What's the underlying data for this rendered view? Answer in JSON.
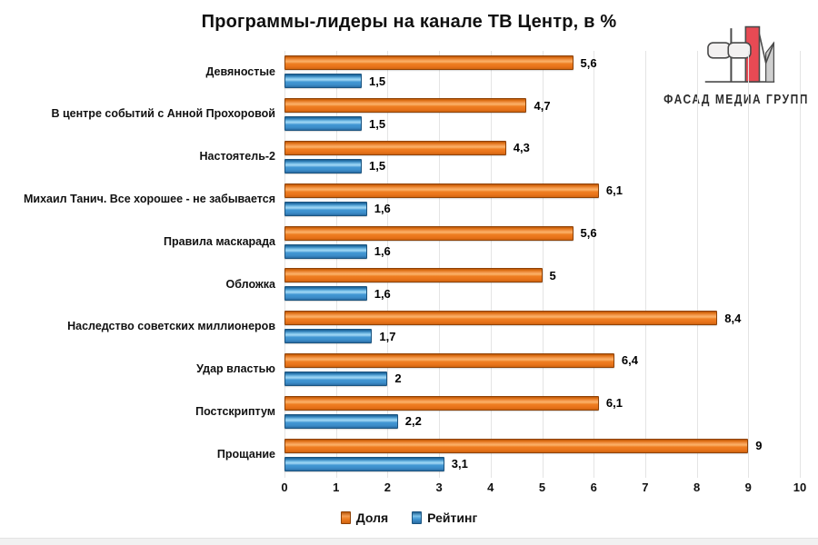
{
  "title": "Программы-лидеры на канале ТВ Центр, в %",
  "logo": {
    "text": "ФАСАД МЕДИА ГРУПП",
    "red": "#e84a54",
    "gray": "#cfcfcf",
    "outline": "#4a4a4a"
  },
  "chart_data": {
    "type": "bar",
    "orientation": "horizontal",
    "title": "Программы-лидеры на канале ТВ Центр, в %",
    "categories": [
      "Девяностые",
      "В центре событий с Анной Прохоровой",
      "Настоятель-2",
      "Михаил Танич. Все хорошее - не забывается",
      "Правила маскарада",
      "Обложка",
      "Наследство советских миллионеров",
      "Удар властью",
      "Постскриптум",
      "Прощание"
    ],
    "series": [
      {
        "name": "Доля",
        "color": "#ED7D31",
        "values": [
          5.6,
          4.7,
          4.3,
          6.1,
          5.6,
          5,
          8.4,
          6.4,
          6.1,
          9
        ],
        "labels": [
          "5,6",
          "4,7",
          "4,3",
          "6,1",
          "5,6",
          "5",
          "8,4",
          "6,4",
          "6,1",
          "9"
        ]
      },
      {
        "name": "Рейтинг",
        "color": "#41A0DC",
        "values": [
          1.5,
          1.5,
          1.5,
          1.6,
          1.6,
          1.6,
          1.7,
          2,
          2.2,
          3.1
        ],
        "labels": [
          "1,5",
          "1,5",
          "1,5",
          "1,6",
          "1,6",
          "1,6",
          "1,7",
          "2",
          "2,2",
          "3,1"
        ]
      }
    ],
    "xlim": [
      0,
      10
    ],
    "x_ticks": [
      "0",
      "1",
      "2",
      "3",
      "4",
      "5",
      "6",
      "7",
      "8",
      "9",
      "10"
    ],
    "grid": true,
    "legend_position": "bottom",
    "value_labels": true
  }
}
